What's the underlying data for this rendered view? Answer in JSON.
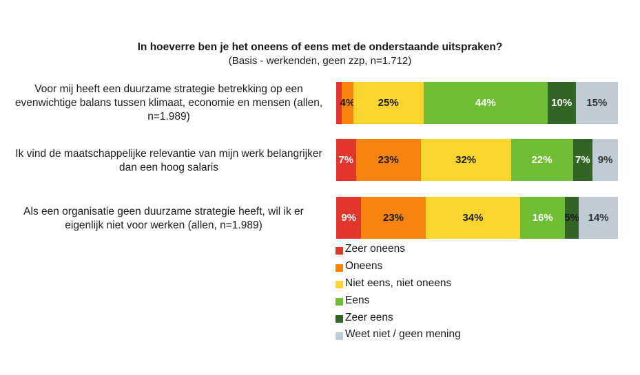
{
  "chart_data": {
    "type": "bar",
    "orientation": "horizontal",
    "stacked": true,
    "title": "In hoeverre ben je het oneens of eens met de onderstaande uitspraken?",
    "subtitle": "(Basis - werkenden, geen zzp, n=1.712)",
    "categories": [
      "Voor mij heeft een duurzame strategie betrekking op een evenwichtige balans tussen klimaat, economie en mensen (allen, n=1.989)",
      "Ik vind de maatschappelijke relevantie van mijn werk belangrijker dan een hoog salaris",
      "Als een organisatie geen duurzame strategie heeft, wil ik er eigenlijk niet voor werken (allen, n=1.989)"
    ],
    "series": [
      {
        "name": "Zeer oneens",
        "color": "#e2362c",
        "values": [
          2,
          7,
          9
        ],
        "labels": [
          "",
          "7%",
          "9%"
        ]
      },
      {
        "name": "Oneens",
        "color": "#f7840e",
        "values": [
          4,
          23,
          23
        ],
        "labels": [
          "4%",
          "23%",
          "23%"
        ]
      },
      {
        "name": "Niet eens, niet oneens",
        "color": "#fad52d",
        "values": [
          25,
          32,
          34
        ],
        "labels": [
          "25%",
          "32%",
          "34%"
        ]
      },
      {
        "name": "Eens",
        "color": "#6ebd32",
        "values": [
          44,
          22,
          16
        ],
        "labels": [
          "44%",
          "22%",
          "16%"
        ]
      },
      {
        "name": "Zeer eens",
        "color": "#336625",
        "values": [
          10,
          7,
          5
        ],
        "labels": [
          "10%",
          "7%",
          "5%"
        ]
      },
      {
        "name": "Weet niet / geen mening",
        "color": "#bfcbd5",
        "values": [
          15,
          9,
          14
        ],
        "labels": [
          "15%",
          "9%",
          "14%"
        ]
      }
    ],
    "xlim": [
      0,
      100
    ],
    "legend": "bottom-center"
  },
  "colors": {
    "label_dark": "#1a1a1a",
    "label_light": "#ffffff"
  }
}
